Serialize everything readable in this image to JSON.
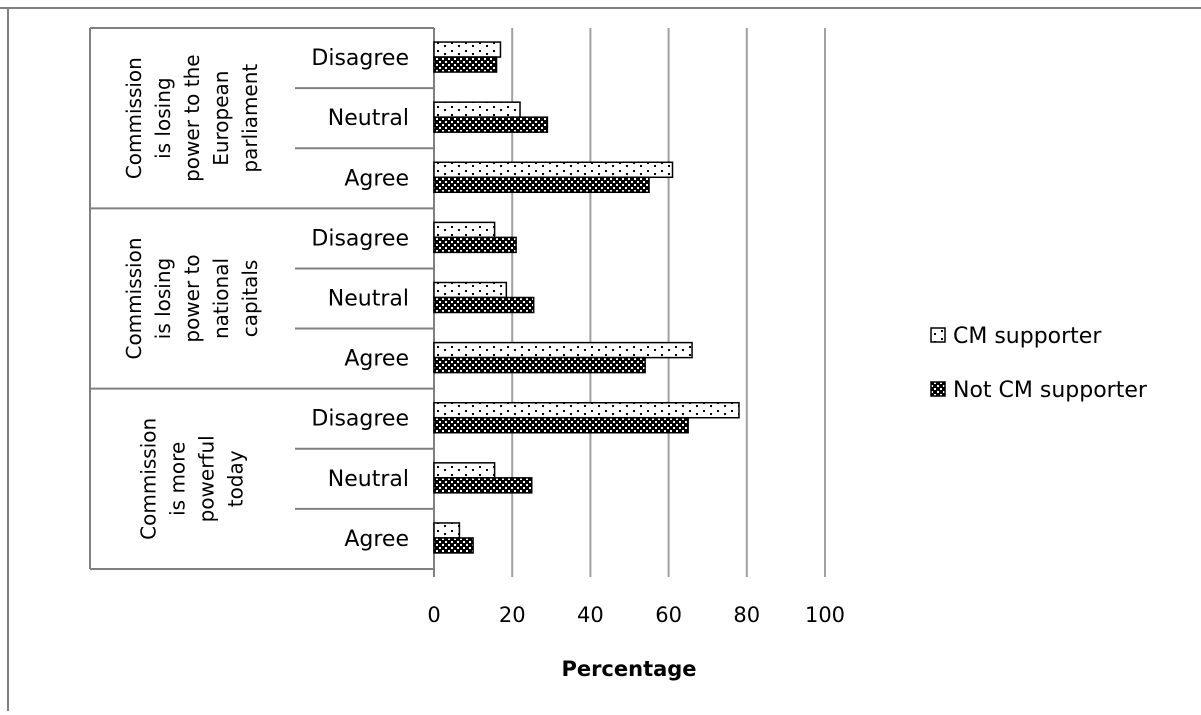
{
  "chart_data": {
    "type": "bar",
    "orientation": "horizontal",
    "title": "",
    "xlabel": "Percentage",
    "ylabel": "",
    "xlim": [
      0,
      100
    ],
    "xticks": [
      0,
      20,
      40,
      60,
      80,
      100
    ],
    "grid": true,
    "legend_position": "right",
    "groups": [
      {
        "label": "Commission is losing power to the European parliament",
        "label_lines": [
          "Commission",
          "is losing",
          "power to the",
          "European",
          "parliament"
        ],
        "categories": [
          "Disagree",
          "Neutral",
          "Agree"
        ]
      },
      {
        "label": "Commission is losing power to national capitals",
        "label_lines": [
          "Commission",
          "is losing",
          "power to",
          "national",
          "capitals"
        ],
        "categories": [
          "Disagree",
          "Neutral",
          "Agree"
        ]
      },
      {
        "label": "Commission is more powerful today",
        "label_lines": [
          "Commission",
          "is more",
          "powerful",
          "today"
        ],
        "categories": [
          "Disagree",
          "Neutral",
          "Agree"
        ]
      }
    ],
    "series": [
      {
        "name": "CM supporter",
        "pattern": "sparse-dots-on-white",
        "values": [
          17,
          22,
          61,
          15.5,
          18.5,
          66,
          78,
          15.5,
          6.5
        ]
      },
      {
        "name": "Not CM supporter",
        "pattern": "white-dots-on-black",
        "values": [
          16,
          29,
          55,
          21,
          25.5,
          54,
          65,
          25,
          10
        ]
      }
    ],
    "colors": {
      "bar_dark": "#000000",
      "bar_light": "#ffffff",
      "grid": "#a0a0a0",
      "frame": "#808080"
    }
  }
}
